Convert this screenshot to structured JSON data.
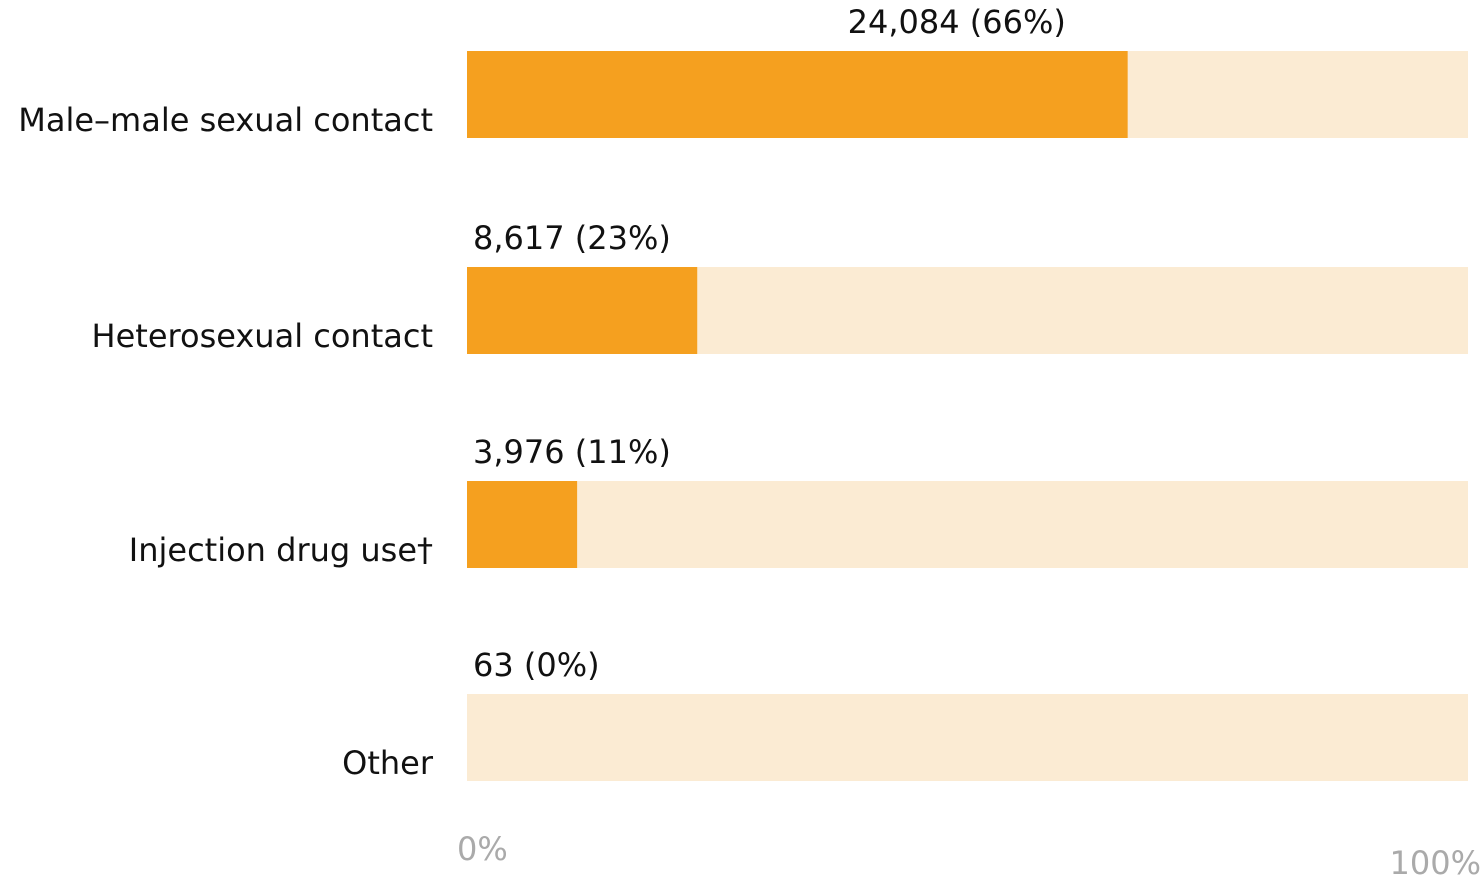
{
  "chart_data": {
    "type": "hbar",
    "categories": [
      "Male–male sexual contact",
      "Heterosexual contact",
      "Injection drug use†",
      "Other"
    ],
    "values": [
      66,
      23,
      11,
      0
    ],
    "value_labels": [
      "24,084 (66%)",
      "8,617 (23%)",
      "3,976 (11%)",
      "63 (0%)"
    ],
    "color": "#f5a01f",
    "track_color": "#fbebd3",
    "xlim": [
      0,
      100
    ],
    "xticks": [
      {
        "value": 0,
        "label": "0%"
      },
      {
        "value": 100,
        "label": "100%"
      }
    ]
  }
}
